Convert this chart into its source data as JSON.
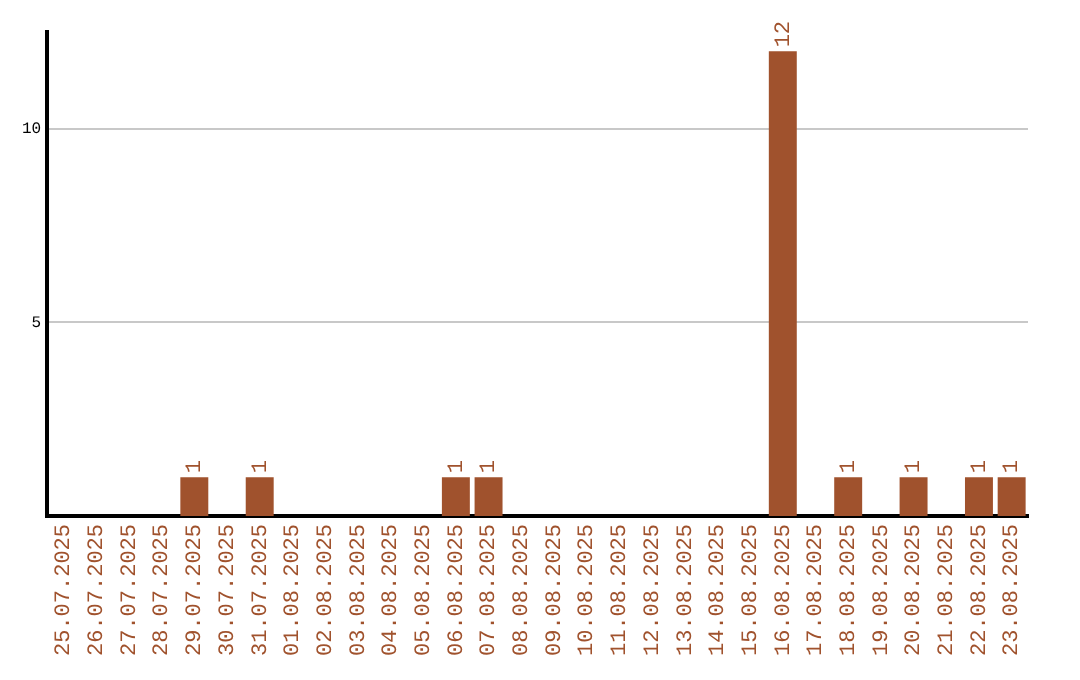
{
  "chart_data": {
    "type": "bar",
    "categories": [
      "25.07.2025",
      "26.07.2025",
      "27.07.2025",
      "28.07.2025",
      "29.07.2025",
      "30.07.2025",
      "31.07.2025",
      "01.08.2025",
      "02.08.2025",
      "03.08.2025",
      "04.08.2025",
      "05.08.2025",
      "06.08.2025",
      "07.08.2025",
      "08.08.2025",
      "09.08.2025",
      "10.08.2025",
      "11.08.2025",
      "12.08.2025",
      "13.08.2025",
      "14.08.2025",
      "15.08.2025",
      "16.08.2025",
      "17.08.2025",
      "18.08.2025",
      "19.08.2025",
      "20.08.2025",
      "21.08.2025",
      "22.08.2025",
      "23.08.2025"
    ],
    "values": [
      0,
      0,
      0,
      0,
      1,
      0,
      1,
      0,
      0,
      0,
      0,
      0,
      1,
      1,
      0,
      0,
      0,
      0,
      0,
      0,
      0,
      0,
      12,
      0,
      1,
      0,
      1,
      0,
      1,
      1
    ],
    "value_labels": [
      null,
      null,
      null,
      null,
      "1",
      null,
      "1",
      null,
      null,
      null,
      null,
      null,
      "1",
      "1",
      null,
      null,
      null,
      null,
      null,
      null,
      null,
      null,
      "12",
      null,
      "1",
      null,
      "1",
      null,
      "1",
      "1"
    ],
    "color": "#a0522d",
    "ylim": [
      0,
      12.5
    ],
    "yticks": [
      5,
      10
    ],
    "grid": "y",
    "legend": false
  }
}
